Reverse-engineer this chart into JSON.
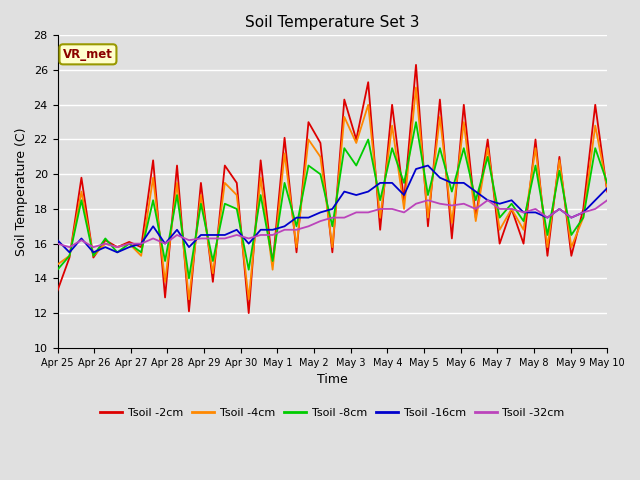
{
  "title": "Soil Temperature Set 3",
  "xlabel": "Time",
  "ylabel": "Soil Temperature (C)",
  "annotation": "VR_met",
  "ylim": [
    10,
    28
  ],
  "xlim": [
    0,
    15
  ],
  "background_color": "#e0e0e0",
  "plot_bg_color": "#e0e0e0",
  "grid_color": "white",
  "colors": {
    "Tsoil -2cm": "#dd0000",
    "Tsoil -4cm": "#ff8800",
    "Tsoil -8cm": "#00cc00",
    "Tsoil -16cm": "#0000cc",
    "Tsoil -32cm": "#bb44bb"
  },
  "xtick_labels": [
    "Apr 25",
    "Apr 26",
    "Apr 27",
    "Apr 28",
    "Apr 29",
    "Apr 30",
    "May 1",
    "May 2",
    "May 3",
    "May 4",
    "May 5",
    "May 6",
    "May 7",
    "May 8",
    "May 9",
    "May 10"
  ],
  "xtick_positions": [
    0,
    1,
    2,
    3,
    4,
    5,
    6,
    7,
    8,
    9,
    10,
    11,
    12,
    13,
    14,
    15
  ],
  "ytick_positions": [
    10,
    12,
    14,
    16,
    18,
    20,
    22,
    24,
    26,
    28
  ],
  "series": {
    "Tsoil -2cm": [
      13.3,
      15.2,
      19.8,
      15.2,
      16.2,
      15.8,
      16.1,
      15.8,
      20.8,
      12.9,
      20.5,
      12.1,
      19.5,
      13.8,
      20.5,
      19.5,
      12.0,
      20.8,
      14.8,
      22.1,
      15.5,
      23.0,
      21.8,
      15.5,
      24.3,
      22.0,
      25.3,
      16.8,
      24.0,
      18.5,
      26.3,
      17.0,
      24.3,
      16.3,
      24.0,
      17.5,
      22.0,
      16.0,
      18.0,
      16.0,
      22.0,
      15.3,
      21.0,
      15.3,
      18.0,
      24.0,
      19.0
    ],
    "Tsoil -4cm": [
      14.8,
      15.3,
      19.0,
      15.3,
      16.0,
      15.8,
      16.0,
      15.3,
      19.8,
      13.8,
      19.5,
      12.8,
      18.8,
      14.3,
      19.5,
      18.8,
      12.8,
      19.8,
      14.5,
      21.2,
      15.8,
      22.0,
      21.0,
      15.8,
      23.3,
      21.8,
      24.0,
      17.5,
      22.8,
      18.0,
      25.0,
      17.5,
      23.3,
      17.2,
      23.0,
      17.3,
      21.5,
      16.8,
      18.0,
      16.8,
      21.5,
      15.8,
      20.8,
      15.8,
      17.5,
      22.8,
      19.2
    ],
    "Tsoil -8cm": [
      14.5,
      15.3,
      18.5,
      15.3,
      16.3,
      15.5,
      16.0,
      15.5,
      18.5,
      15.0,
      18.8,
      14.0,
      18.3,
      15.0,
      18.3,
      18.0,
      14.5,
      18.8,
      15.0,
      19.5,
      17.0,
      20.5,
      20.0,
      17.0,
      21.5,
      20.5,
      22.0,
      18.5,
      21.5,
      19.5,
      23.0,
      18.8,
      21.5,
      19.0,
      21.5,
      18.5,
      21.0,
      17.5,
      18.3,
      17.3,
      20.5,
      16.5,
      20.2,
      16.5,
      17.5,
      21.5,
      19.5
    ],
    "Tsoil -16cm": [
      16.2,
      15.5,
      16.3,
      15.5,
      15.8,
      15.5,
      15.8,
      16.0,
      17.0,
      16.0,
      16.8,
      15.8,
      16.5,
      16.5,
      16.5,
      16.8,
      16.0,
      16.8,
      16.8,
      17.0,
      17.5,
      17.5,
      17.8,
      18.0,
      19.0,
      18.8,
      19.0,
      19.5,
      19.5,
      18.8,
      20.3,
      20.5,
      19.8,
      19.5,
      19.5,
      19.0,
      18.5,
      18.3,
      18.5,
      17.8,
      17.8,
      17.5,
      18.0,
      17.5,
      17.8,
      18.5,
      19.2
    ],
    "Tsoil -32cm": [
      16.0,
      15.8,
      16.2,
      15.8,
      16.0,
      15.8,
      16.0,
      16.0,
      16.3,
      16.0,
      16.5,
      16.2,
      16.3,
      16.3,
      16.3,
      16.5,
      16.3,
      16.5,
      16.5,
      16.8,
      16.8,
      17.0,
      17.3,
      17.5,
      17.5,
      17.8,
      17.8,
      18.0,
      18.0,
      17.8,
      18.3,
      18.5,
      18.3,
      18.2,
      18.3,
      18.0,
      18.5,
      18.0,
      18.0,
      17.8,
      18.0,
      17.5,
      18.0,
      17.5,
      17.8,
      18.0,
      18.5
    ]
  }
}
